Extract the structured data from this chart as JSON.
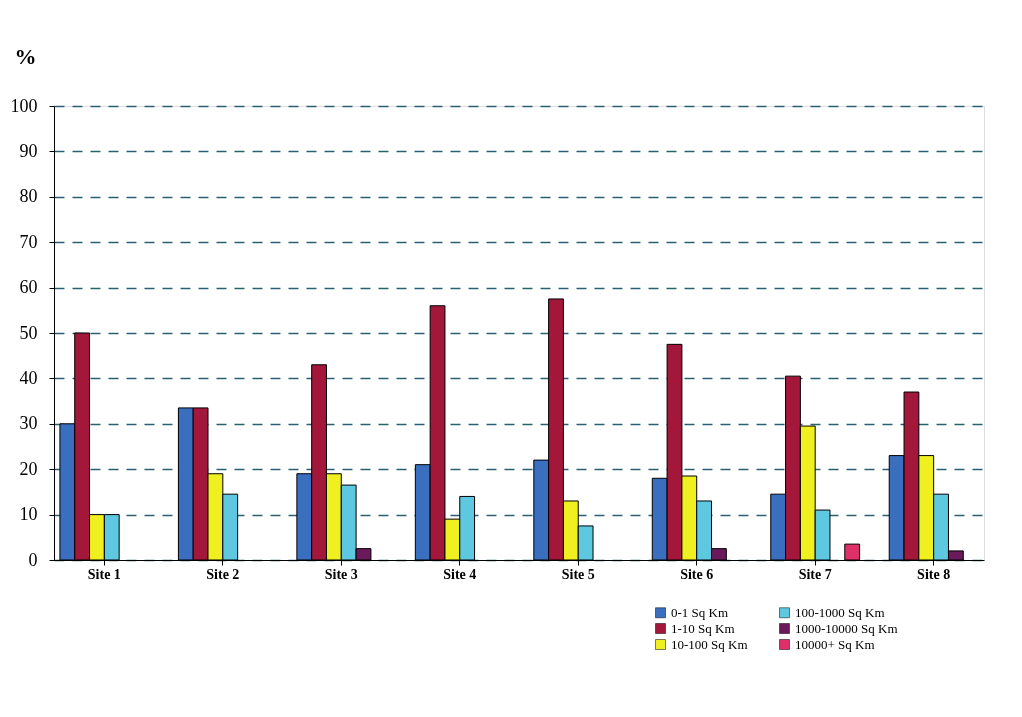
{
  "chart_data": {
    "type": "bar",
    "ylabel": "%",
    "categories": [
      "Site 1",
      "Site 2",
      "Site 3",
      "Site 4",
      "Site 5",
      "Site 6",
      "Site 7",
      "Site 8"
    ],
    "series": [
      {
        "name": "0-1 Sq Km",
        "color": "#3a6fc0",
        "values": [
          30,
          33.5,
          19,
          21,
          22,
          18,
          14.5,
          23
        ]
      },
      {
        "name": "1-10 Sq Km",
        "color": "#a3173a",
        "values": [
          50,
          33.5,
          43,
          56,
          57.5,
          47.5,
          40.5,
          37
        ]
      },
      {
        "name": "10-100 Sq Km",
        "color": "#f0f020",
        "values": [
          10,
          19,
          19,
          9,
          13,
          18.5,
          29.5,
          23
        ]
      },
      {
        "name": "100-1000 Sq Km",
        "color": "#5ec8e0",
        "values": [
          10,
          14.5,
          16.5,
          14,
          7.5,
          13,
          11,
          14.5
        ]
      },
      {
        "name": "1000-10000 Sq Km",
        "color": "#6a1a5a",
        "values": [
          null,
          null,
          2.5,
          null,
          null,
          2.5,
          null,
          2
        ]
      },
      {
        "name": "10000+ Sq Km",
        "color": "#e0306a",
        "values": [
          null,
          null,
          null,
          null,
          null,
          null,
          3.5,
          null
        ]
      }
    ],
    "ylim": [
      0,
      100
    ],
    "yticks": [
      0,
      10,
      20,
      30,
      40,
      50,
      60,
      70,
      80,
      90,
      100
    ],
    "grid": "y",
    "legend": "bottom right"
  }
}
